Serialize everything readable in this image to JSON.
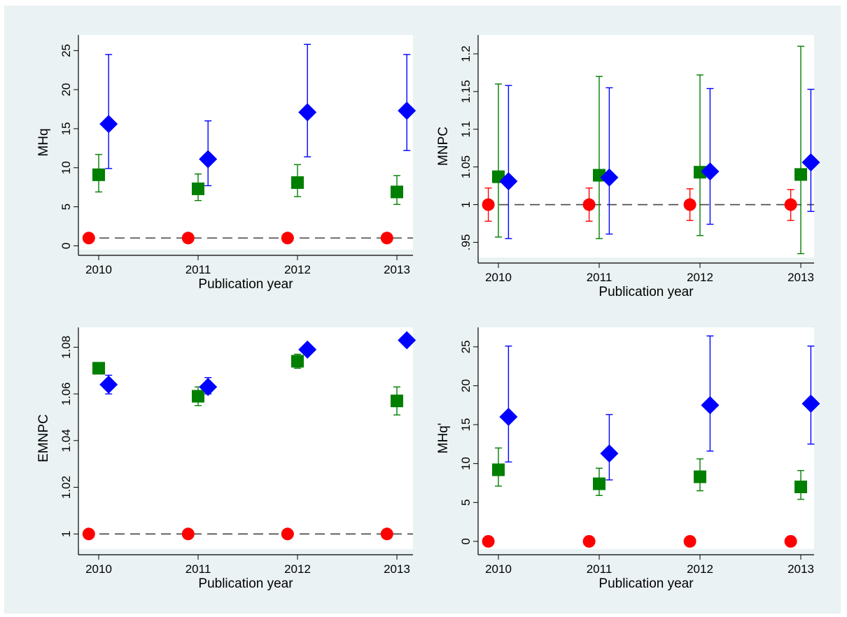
{
  "colors": {
    "background": "#eaf2f3",
    "plot_area": "#ffffff",
    "red_series": "#ff0000",
    "green_series": "#007f00",
    "blue_series": "#0000ff",
    "reference_line": "#444444"
  },
  "markers": {
    "red": "circle",
    "green": "square",
    "blue": "diamond"
  },
  "chart_data": [
    {
      "type": "scatter",
      "ylabel": "MHq",
      "xlabel": "Publication year",
      "x_ticks": [
        "2010",
        "2011",
        "2012",
        "2013"
      ],
      "y_ticks": [
        "0",
        "5",
        "10",
        "15",
        "20",
        "25"
      ],
      "ylim": [
        -0.5,
        27
      ],
      "xlim": [
        2009.9,
        2013.2
      ],
      "reference_line_y": 1,
      "series": [
        {
          "color": "red",
          "marker": "circle",
          "x": [
            2009.9,
            2010.9,
            2011.9,
            2012.9
          ],
          "y": [
            1,
            1,
            1,
            1
          ]
        },
        {
          "color": "green",
          "marker": "square",
          "x": [
            2010,
            2011,
            2012,
            2013
          ],
          "y": [
            9.1,
            7.3,
            8.1,
            6.9
          ],
          "lower": [
            6.9,
            5.8,
            6.3,
            5.3
          ],
          "upper": [
            11.7,
            9.2,
            10.4,
            9.0
          ]
        },
        {
          "color": "blue",
          "marker": "diamond",
          "x": [
            2010.1,
            2011.1,
            2012.1,
            2013.1
          ],
          "y": [
            15.6,
            11.1,
            17.1,
            17.3
          ],
          "lower": [
            9.9,
            7.7,
            11.4,
            12.2
          ],
          "upper": [
            24.5,
            16.0,
            25.8,
            24.5
          ]
        }
      ]
    },
    {
      "type": "scatter",
      "ylabel": "MNPC",
      "xlabel": "Publication year",
      "x_ticks": [
        "2010",
        "2011",
        "2012",
        "2013"
      ],
      "y_ticks": [
        ".95",
        "1",
        "1.05",
        "1.1",
        "1.15",
        "1.2"
      ],
      "y_tick_values": [
        0.95,
        1,
        1.05,
        1.1,
        1.15,
        1.2
      ],
      "ylim": [
        0.93,
        1.225
      ],
      "xlim": [
        2009.9,
        2013.2
      ],
      "reference_line_y": 1,
      "series": [
        {
          "color": "red",
          "marker": "circle",
          "x": [
            2009.9,
            2010.9,
            2011.9,
            2012.9
          ],
          "y": [
            1,
            1,
            1,
            1
          ],
          "lower": [
            0.978,
            0.978,
            0.979,
            0.979
          ],
          "upper": [
            1.022,
            1.022,
            1.021,
            1.02
          ]
        },
        {
          "color": "green",
          "marker": "square",
          "x": [
            2010,
            2011,
            2012,
            2013
          ],
          "y": [
            1.037,
            1.039,
            1.043,
            1.04
          ],
          "lower": [
            0.957,
            0.955,
            0.959,
            0.935
          ],
          "upper": [
            1.16,
            1.17,
            1.172,
            1.21
          ]
        },
        {
          "color": "blue",
          "marker": "diamond",
          "x": [
            2010.1,
            2011.1,
            2012.1,
            2013.1
          ],
          "y": [
            1.031,
            1.036,
            1.044,
            1.056
          ],
          "lower": [
            0.955,
            0.961,
            0.974,
            0.991
          ],
          "upper": [
            1.158,
            1.155,
            1.154,
            1.153
          ]
        }
      ]
    },
    {
      "type": "scatter",
      "ylabel": "EMNPC",
      "xlabel": "Publication year",
      "x_ticks": [
        "2010",
        "2011",
        "2012",
        "2013"
      ],
      "y_ticks": [
        "1",
        "1.02",
        "1.04",
        "1.06",
        "1.08"
      ],
      "y_tick_values": [
        1,
        1.02,
        1.04,
        1.06,
        1.08
      ],
      "ylim": [
        0.9935,
        1.0885
      ],
      "xlim": [
        2009.9,
        2013.2
      ],
      "reference_line_y": 1,
      "series": [
        {
          "color": "red",
          "marker": "circle",
          "x": [
            2009.9,
            2010.9,
            2011.9,
            2012.9
          ],
          "y": [
            1,
            1,
            1,
            1
          ]
        },
        {
          "color": "green",
          "marker": "square",
          "x": [
            2010,
            2011,
            2012,
            2013
          ],
          "y": [
            1.071,
            1.059,
            1.074,
            1.057
          ],
          "lower": [
            1.07,
            1.055,
            1.071,
            1.051
          ],
          "upper": [
            1.073,
            1.063,
            1.077,
            1.063
          ]
        },
        {
          "color": "blue",
          "marker": "diamond",
          "x": [
            2010.1,
            2011.1,
            2012.1,
            2013.1
          ],
          "y": [
            1.064,
            1.063,
            1.079,
            1.083
          ],
          "lower": [
            1.06,
            1.06,
            1.078,
            1.082
          ],
          "upper": [
            1.068,
            1.067,
            1.081,
            1.085
          ]
        }
      ]
    },
    {
      "type": "scatter",
      "ylabel": "MHq'",
      "xlabel": "Publication year",
      "x_ticks": [
        "2010",
        "2011",
        "2012",
        "2013"
      ],
      "y_ticks": [
        "0",
        "5",
        "10",
        "15",
        "20",
        "25"
      ],
      "ylim": [
        -1,
        27.5
      ],
      "xlim": [
        2009.9,
        2013.2
      ],
      "series": [
        {
          "color": "red",
          "marker": "circle",
          "x": [
            2009.9,
            2010.9,
            2011.9,
            2012.9
          ],
          "y": [
            0,
            0,
            0,
            0
          ]
        },
        {
          "color": "green",
          "marker": "square",
          "x": [
            2010,
            2011,
            2012,
            2013
          ],
          "y": [
            9.2,
            7.4,
            8.3,
            7.0
          ],
          "lower": [
            7.1,
            5.9,
            6.5,
            5.4
          ],
          "upper": [
            12.0,
            9.4,
            10.6,
            9.1
          ]
        },
        {
          "color": "blue",
          "marker": "diamond",
          "x": [
            2010.1,
            2011.1,
            2012.1,
            2013.1
          ],
          "y": [
            16.0,
            11.3,
            17.5,
            17.7
          ],
          "lower": [
            10.2,
            7.9,
            11.6,
            12.5
          ],
          "upper": [
            25.1,
            16.3,
            26.4,
            25.1
          ]
        }
      ]
    }
  ]
}
